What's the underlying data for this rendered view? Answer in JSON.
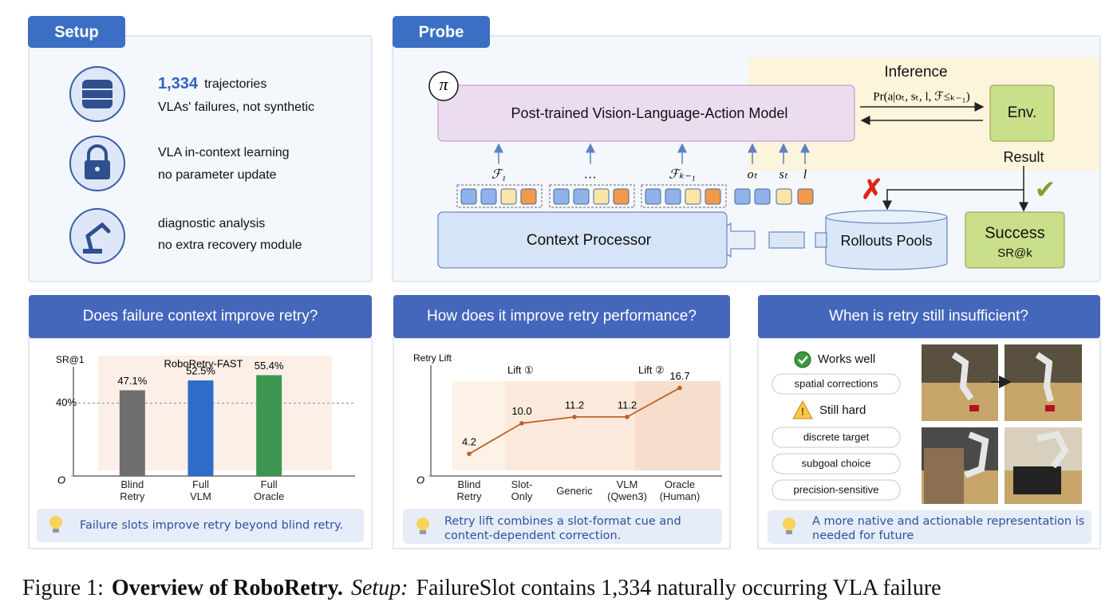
{
  "setup": {
    "tab": "Setup",
    "items": [
      {
        "highlight": "1,334",
        "line1": "trajectories",
        "line2": "VLAs' failures, not synthetic"
      },
      {
        "line1": "VLA in-context learning",
        "line2": "no parameter update"
      },
      {
        "line1": "diagnostic analysis",
        "line2": "no extra recovery module"
      }
    ]
  },
  "probe": {
    "tab": "Probe",
    "inference": "Inference",
    "pi": "π",
    "model": "Post-trained Vision-Language-Action Model",
    "action": "Pr(a|oₜ, sₜ, l, ℱ≤ₖ₋₁)",
    "env": "Env.",
    "result": "Result",
    "fail_mark": "✗",
    "success_mark": "✔",
    "success": "Success",
    "success_metric": "SR@k",
    "rollouts": "Rollouts Pools",
    "context": "Context Processor",
    "inputs": [
      "ℱ₁",
      "…",
      "ℱₖ₋₁",
      "oₜ",
      "sₜ",
      "l"
    ]
  },
  "chart_data": [
    {
      "type": "bar",
      "title": "RoboRetry-FAST",
      "y_label": "SR@1",
      "categories": [
        "Blind Retry",
        "Full VLM",
        "Full Oracle"
      ],
      "values": [
        47.1,
        52.5,
        55.4
      ],
      "value_labels": [
        "47.1%",
        "52.5%",
        "55.4%"
      ],
      "colors": [
        "#6e6e6e",
        "#2f6bc8",
        "#3d9650"
      ],
      "ylim": [
        0,
        60
      ],
      "yticks": [
        {
          "value": 0,
          "label": "O"
        },
        {
          "value": 40,
          "label": "40%"
        }
      ]
    },
    {
      "type": "line",
      "y_label": "Retry Lift",
      "categories": [
        "Blind Retry",
        "Slot-Only",
        "Generic",
        "VLM (Qwen3)",
        "Oracle (Human)"
      ],
      "values": [
        4.2,
        10.0,
        11.2,
        11.2,
        16.7
      ],
      "value_labels": [
        "4.2",
        "10.0",
        "11.2",
        "11.2",
        "16.7"
      ],
      "color": "#c0602b",
      "annotations": [
        "Lift ①",
        "Lift ②"
      ],
      "ylim": [
        0,
        21
      ],
      "yticks": [
        {
          "value": 0,
          "label": "O"
        }
      ]
    }
  ],
  "panels": [
    {
      "title": "Does failure context improve retry?",
      "tip": "Failure slots improve retry beyond blind retry."
    },
    {
      "title": "How does it improve retry performance?",
      "tip": "Retry lift combines a slot-format cue and content-dependent correction."
    },
    {
      "title": "When is retry still insufficient?",
      "works": "Works well",
      "works_items": [
        "spatial corrections"
      ],
      "hard": "Still hard",
      "hard_items": [
        "discrete target",
        "subgoal choice",
        "precision-sensitive"
      ],
      "tip": "A more native and actionable representation is needed for future"
    }
  ],
  "caption": {
    "label": "Figure 1:",
    "title": "Overview of RoboRetry.",
    "section": "Setup:",
    "text": "FailureSlot contains 1,334 naturally occurring VLA failure"
  }
}
